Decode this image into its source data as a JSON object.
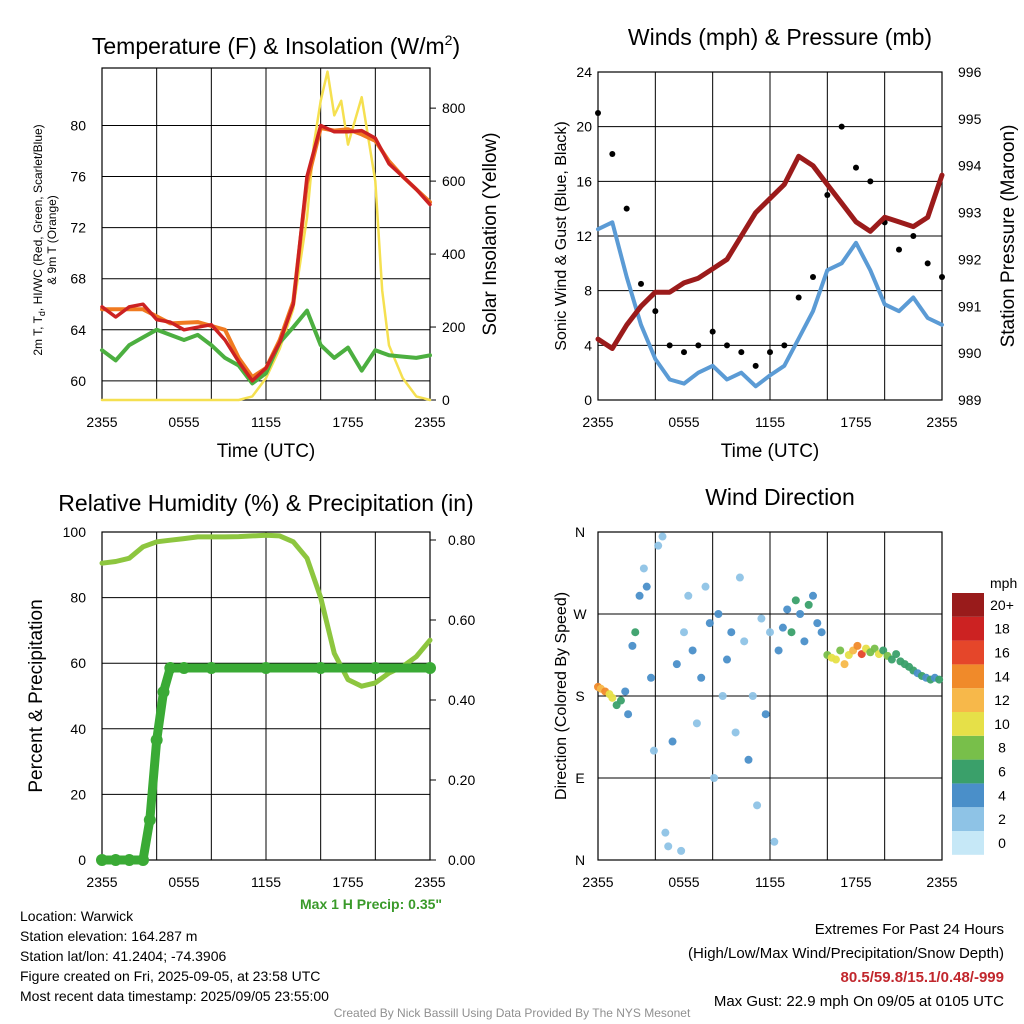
{
  "x_ticks": [
    "2355",
    "0555",
    "1155",
    "1755",
    "2355"
  ],
  "chart_data": [
    {
      "type": "line",
      "title": "Temperature (F) & Insolation (W/m",
      "title_sup": "2",
      "title_end": ")",
      "xlabel": "Time (UTC)",
      "ylabel_left_lines": [
        "2m T, T",
        "d",
        ", HI/WC (Red, Green, Scarlet/Blue)",
        "& 9m T (Orange)"
      ],
      "ylabel_right": "Solar Insolation (Yellow)",
      "ylim": [
        58.5,
        84.5
      ],
      "yticks": [
        "60",
        "64",
        "68",
        "72",
        "76",
        "80"
      ],
      "y2lim": [
        0,
        910
      ],
      "y2ticks": [
        "0",
        "200",
        "400",
        "600",
        "800"
      ],
      "grid": true,
      "colors": {
        "temp": "#cc2222",
        "temp9m": "#f07a20",
        "dew": "#4caf40",
        "solar": "#f5e050",
        "heat": "#aa1111"
      },
      "series": [
        {
          "name": "2m T",
          "color": "red",
          "x": [
            0,
            1,
            2,
            3,
            4,
            5,
            6,
            7,
            8,
            9,
            10,
            11,
            12,
            13,
            14,
            15,
            16,
            17,
            18,
            19,
            20,
            21,
            22,
            23,
            24
          ],
          "values": [
            65.8,
            65.0,
            65.8,
            66.0,
            64.8,
            64.6,
            64.0,
            64.2,
            64.4,
            63.2,
            61.5,
            60.0,
            61.0,
            63.0,
            66.0,
            76.0,
            80.0,
            79.5,
            79.5,
            79.6,
            79.0,
            77.0,
            76.0,
            75.0,
            73.8
          ]
        },
        {
          "name": "9m T",
          "color": "orange",
          "x": [
            0,
            3,
            5,
            7,
            9,
            10,
            11,
            12,
            13,
            14,
            15,
            16,
            17,
            18,
            19,
            20,
            21,
            22,
            23,
            24
          ],
          "values": [
            65.6,
            65.6,
            64.5,
            64.6,
            64.0,
            61.8,
            60.3,
            61.0,
            63.2,
            66.2,
            75.5,
            79.8,
            79.6,
            79.7,
            79.3,
            78.8,
            77.2,
            76.0,
            75.0,
            74.0
          ]
        },
        {
          "name": "Dewpoint",
          "color": "green",
          "x": [
            0,
            1,
            2,
            3,
            4,
            5,
            6,
            7,
            8,
            9,
            10,
            11,
            12,
            13,
            14,
            15,
            16,
            17,
            18,
            19,
            20,
            21,
            22,
            23,
            24
          ],
          "values": [
            62.4,
            61.6,
            62.8,
            63.4,
            64.0,
            63.6,
            63.2,
            63.6,
            62.8,
            61.8,
            61.2,
            59.8,
            60.6,
            63.0,
            64.2,
            65.5,
            62.8,
            61.8,
            62.6,
            60.8,
            62.4,
            62.0,
            61.9,
            61.8,
            62.0
          ]
        },
        {
          "name": "Solar",
          "color": "yellow",
          "axis": "right",
          "x": [
            0,
            10,
            11,
            12,
            13,
            14,
            15,
            15.5,
            16,
            16.5,
            17,
            17.5,
            18,
            19,
            20,
            20.5,
            21,
            22,
            23,
            24
          ],
          "values": [
            0,
            0,
            10,
            60,
            140,
            250,
            500,
            700,
            820,
            900,
            780,
            820,
            700,
            830,
            600,
            300,
            150,
            60,
            10,
            0
          ]
        }
      ]
    },
    {
      "type": "line",
      "title": "Winds (mph) & Pressure (mb)",
      "xlabel": "Time (UTC)",
      "ylabel_left": "Sonic Wind & Gust (Blue, Black)",
      "ylabel_right": "Station Pressure (Maroon)",
      "ylim": [
        0,
        24
      ],
      "yticks": [
        "0",
        "4",
        "8",
        "12",
        "16",
        "20",
        "24"
      ],
      "y2lim": [
        989,
        996
      ],
      "y2ticks": [
        "989",
        "990",
        "991",
        "992",
        "993",
        "994",
        "995",
        "996"
      ],
      "grid": true,
      "colors": {
        "wind": "#5b9bd5",
        "gust": "#000000",
        "pressure": "#9b1b1b"
      },
      "series": [
        {
          "name": "Sonic Wind",
          "color": "blue",
          "x": [
            0,
            1,
            2,
            3,
            4,
            5,
            6,
            7,
            8,
            9,
            10,
            11,
            12,
            13,
            14,
            15,
            16,
            17,
            18,
            19,
            20,
            21,
            22,
            23,
            24
          ],
          "values": [
            12.5,
            13.0,
            9.0,
            5.5,
            3.0,
            1.5,
            1.2,
            2.0,
            2.5,
            1.5,
            2.0,
            1.0,
            1.8,
            2.5,
            4.5,
            6.5,
            9.5,
            10.0,
            11.5,
            9.5,
            7.0,
            6.5,
            7.5,
            6.0,
            5.5
          ]
        },
        {
          "name": "Gust",
          "color": "black",
          "type": "scatter",
          "x": [
            0,
            1,
            2,
            3,
            4,
            5,
            6,
            7,
            8,
            9,
            10,
            11,
            12,
            13,
            14,
            15,
            16,
            17,
            18,
            19,
            20,
            21,
            22,
            23,
            24
          ],
          "values": [
            21,
            18,
            14,
            8.5,
            6.5,
            4,
            3.5,
            4,
            5,
            4,
            3.5,
            2.5,
            3.5,
            4,
            7.5,
            9,
            15,
            20,
            17,
            16,
            13,
            11,
            12,
            10,
            9
          ]
        },
        {
          "name": "Station Pressure",
          "color": "maroon",
          "axis": "right",
          "x": [
            0,
            1,
            2,
            3,
            4,
            5,
            6,
            7,
            8,
            9,
            10,
            11,
            12,
            13,
            14,
            15,
            16,
            17,
            18,
            19,
            20,
            21,
            22,
            23,
            24
          ],
          "values": [
            990.3,
            990.1,
            990.6,
            991.0,
            991.3,
            991.3,
            991.5,
            991.6,
            991.8,
            992.0,
            992.5,
            993.0,
            993.3,
            993.6,
            994.2,
            994.0,
            993.6,
            993.2,
            992.8,
            992.6,
            992.9,
            992.8,
            992.7,
            992.9,
            993.8
          ]
        }
      ]
    },
    {
      "type": "line",
      "title": "Relative Humidity (%) & Precipitation (in)",
      "ylabel_left": "Percent & Precipitation",
      "ylim": [
        0,
        100
      ],
      "yticks": [
        "0",
        "20",
        "40",
        "60",
        "80",
        "100"
      ],
      "y2lim": [
        0,
        0.82
      ],
      "y2ticks": [
        "0.00",
        "0.20",
        "0.40",
        "0.60",
        "0.80"
      ],
      "grid": true,
      "colors": {
        "rh": "#8dc63f",
        "precip": "#3aaa35"
      },
      "series": [
        {
          "name": "Relative Humidity",
          "color": "light green",
          "x": [
            0,
            1,
            2,
            3,
            4,
            5,
            6,
            7,
            8,
            9,
            10,
            11,
            12,
            13,
            14,
            15,
            16,
            17,
            18,
            19,
            20,
            21,
            22,
            23,
            24
          ],
          "values": [
            90.5,
            91,
            92,
            95.5,
            97,
            97.5,
            98,
            98.5,
            98.5,
            98.5,
            98.6,
            98.8,
            99,
            98.8,
            97,
            92,
            80,
            63,
            55,
            53,
            54,
            57,
            59,
            62,
            67
          ]
        },
        {
          "name": "Precipitation",
          "color": "green",
          "type": "scatter",
          "axis": "right",
          "x": [
            0,
            1,
            2,
            3,
            3.5,
            4,
            4.5,
            5,
            6,
            8,
            12,
            16,
            20,
            24
          ],
          "values": [
            0,
            0,
            0,
            0,
            0.1,
            0.3,
            0.42,
            0.48,
            0.48,
            0.48,
            0.48,
            0.48,
            0.48,
            0.48
          ]
        }
      ]
    },
    {
      "type": "scatter",
      "title": "Wind Direction",
      "ylabel_left": "Direction (Colored By Speed)",
      "yticks": [
        "N",
        "E",
        "S",
        "W",
        "N"
      ],
      "ylim": [
        0,
        360
      ],
      "grid": true,
      "legend_title": "mph",
      "legend_labels": [
        "0",
        "2",
        "4",
        "6",
        "8",
        "10",
        "12",
        "14",
        "16",
        "18",
        "20+"
      ],
      "legend_colors": [
        "#c6e8f7",
        "#8ec3e6",
        "#4a8fc9",
        "#3aa06a",
        "#78bf4a",
        "#e6e048",
        "#f7b84a",
        "#f08a2a",
        "#e5462a",
        "#cc2222",
        "#991b1b"
      ],
      "points": [
        {
          "t": 0,
          "dir": 190,
          "spd": 13
        },
        {
          "t": 0.2,
          "dir": 188,
          "spd": 12
        },
        {
          "t": 0.5,
          "dir": 185,
          "spd": 13
        },
        {
          "t": 0.8,
          "dir": 182,
          "spd": 10
        },
        {
          "t": 1.0,
          "dir": 178,
          "spd": 9
        },
        {
          "t": 1.3,
          "dir": 170,
          "spd": 5
        },
        {
          "t": 1.6,
          "dir": 175,
          "spd": 6
        },
        {
          "t": 1.9,
          "dir": 185,
          "spd": 4
        },
        {
          "t": 2.1,
          "dir": 160,
          "spd": 3
        },
        {
          "t": 2.4,
          "dir": 235,
          "spd": 4
        },
        {
          "t": 2.6,
          "dir": 250,
          "spd": 5
        },
        {
          "t": 2.9,
          "dir": 290,
          "spd": 3
        },
        {
          "t": 3.2,
          "dir": 320,
          "spd": 2
        },
        {
          "t": 3.4,
          "dir": 300,
          "spd": 4
        },
        {
          "t": 3.7,
          "dir": 200,
          "spd": 3
        },
        {
          "t": 3.9,
          "dir": 120,
          "spd": 2
        },
        {
          "t": 4.2,
          "dir": 345,
          "spd": 1
        },
        {
          "t": 4.5,
          "dir": 355,
          "spd": 2
        },
        {
          "t": 4.7,
          "dir": 30,
          "spd": 1
        },
        {
          "t": 4.9,
          "dir": 15,
          "spd": 2
        },
        {
          "t": 5.2,
          "dir": 130,
          "spd": 3
        },
        {
          "t": 5.5,
          "dir": 215,
          "spd": 3
        },
        {
          "t": 5.8,
          "dir": 10,
          "spd": 1
        },
        {
          "t": 6.0,
          "dir": 250,
          "spd": 2
        },
        {
          "t": 6.3,
          "dir": 290,
          "spd": 1
        },
        {
          "t": 6.6,
          "dir": 230,
          "spd": 3
        },
        {
          "t": 6.9,
          "dir": 150,
          "spd": 2
        },
        {
          "t": 7.2,
          "dir": 200,
          "spd": 4
        },
        {
          "t": 7.5,
          "dir": 300,
          "spd": 2
        },
        {
          "t": 7.8,
          "dir": 260,
          "spd": 3
        },
        {
          "t": 8.1,
          "dir": 90,
          "spd": 2
        },
        {
          "t": 8.4,
          "dir": 270,
          "spd": 3
        },
        {
          "t": 8.7,
          "dir": 180,
          "spd": 2
        },
        {
          "t": 9.0,
          "dir": 220,
          "spd": 4
        },
        {
          "t": 9.3,
          "dir": 250,
          "spd": 3
        },
        {
          "t": 9.6,
          "dir": 140,
          "spd": 2
        },
        {
          "t": 9.9,
          "dir": 310,
          "spd": 1
        },
        {
          "t": 10.2,
          "dir": 240,
          "spd": 2
        },
        {
          "t": 10.5,
          "dir": 110,
          "spd": 3
        },
        {
          "t": 10.8,
          "dir": 180,
          "spd": 2
        },
        {
          "t": 11.1,
          "dir": 60,
          "spd": 1
        },
        {
          "t": 11.4,
          "dir": 265,
          "spd": 2
        },
        {
          "t": 11.7,
          "dir": 160,
          "spd": 3
        },
        {
          "t": 12.0,
          "dir": 250,
          "spd": 2
        },
        {
          "t": 12.3,
          "dir": 20,
          "spd": 2
        },
        {
          "t": 12.6,
          "dir": 230,
          "spd": 3
        },
        {
          "t": 12.9,
          "dir": 255,
          "spd": 4
        },
        {
          "t": 13.2,
          "dir": 275,
          "spd": 4
        },
        {
          "t": 13.5,
          "dir": 250,
          "spd": 5
        },
        {
          "t": 13.8,
          "dir": 285,
          "spd": 6
        },
        {
          "t": 14.1,
          "dir": 270,
          "spd": 4
        },
        {
          "t": 14.4,
          "dir": 240,
          "spd": 3
        },
        {
          "t": 14.7,
          "dir": 280,
          "spd": 5
        },
        {
          "t": 15.0,
          "dir": 290,
          "spd": 4
        },
        {
          "t": 15.3,
          "dir": 260,
          "spd": 3
        },
        {
          "t": 15.6,
          "dir": 250,
          "spd": 4
        },
        {
          "t": 16.0,
          "dir": 225,
          "spd": 8
        },
        {
          "t": 16.3,
          "dir": 222,
          "spd": 9
        },
        {
          "t": 16.6,
          "dir": 220,
          "spd": 10
        },
        {
          "t": 16.9,
          "dir": 230,
          "spd": 8
        },
        {
          "t": 17.2,
          "dir": 215,
          "spd": 11
        },
        {
          "t": 17.5,
          "dir": 225,
          "spd": 10
        },
        {
          "t": 17.8,
          "dir": 230,
          "spd": 12
        },
        {
          "t": 18.1,
          "dir": 235,
          "spd": 14
        },
        {
          "t": 18.4,
          "dir": 226,
          "spd": 15
        },
        {
          "t": 18.7,
          "dir": 232,
          "spd": 9
        },
        {
          "t": 19.0,
          "dir": 228,
          "spd": 8
        },
        {
          "t": 19.3,
          "dir": 232,
          "spd": 7
        },
        {
          "t": 19.6,
          "dir": 226,
          "spd": 9
        },
        {
          "t": 19.9,
          "dir": 230,
          "spd": 6
        },
        {
          "t": 20.2,
          "dir": 224,
          "spd": 7
        },
        {
          "t": 20.5,
          "dir": 220,
          "spd": 6
        },
        {
          "t": 20.8,
          "dir": 226,
          "spd": 5
        },
        {
          "t": 21.1,
          "dir": 218,
          "spd": 6
        },
        {
          "t": 21.4,
          "dir": 215,
          "spd": 5
        },
        {
          "t": 21.7,
          "dir": 212,
          "spd": 6
        },
        {
          "t": 22.0,
          "dir": 208,
          "spd": 5
        },
        {
          "t": 22.3,
          "dir": 205,
          "spd": 4
        },
        {
          "t": 22.6,
          "dir": 202,
          "spd": 5
        },
        {
          "t": 22.9,
          "dir": 200,
          "spd": 4
        },
        {
          "t": 23.2,
          "dir": 198,
          "spd": 5
        },
        {
          "t": 23.5,
          "dir": 200,
          "spd": 4
        },
        {
          "t": 23.8,
          "dir": 198,
          "spd": 5
        }
      ]
    }
  ],
  "station_info": [
    "Location: Warwick",
    "Station elevation: 164.287 m",
    "Station lat/lon: 41.2404; -74.3906",
    "Figure created on Fri, 2025-09-05, at 23:58 UTC",
    "Most recent data timestamp: 2025/09/05 23:55:00"
  ],
  "max_precip": "Max 1 H Precip: 0.35\"",
  "extremes": {
    "title": "Extremes For Past 24 Hours",
    "subtitle": "(High/Low/Max Wind/Precipitation/Snow Depth)",
    "values": "80.5/59.8/15.1/0.48/-999",
    "max_gust": "Max Gust: 22.9 mph On 09/05 at 0105 UTC"
  },
  "credit": "Created By Nick Bassill Using Data Provided By The NYS Mesonet"
}
